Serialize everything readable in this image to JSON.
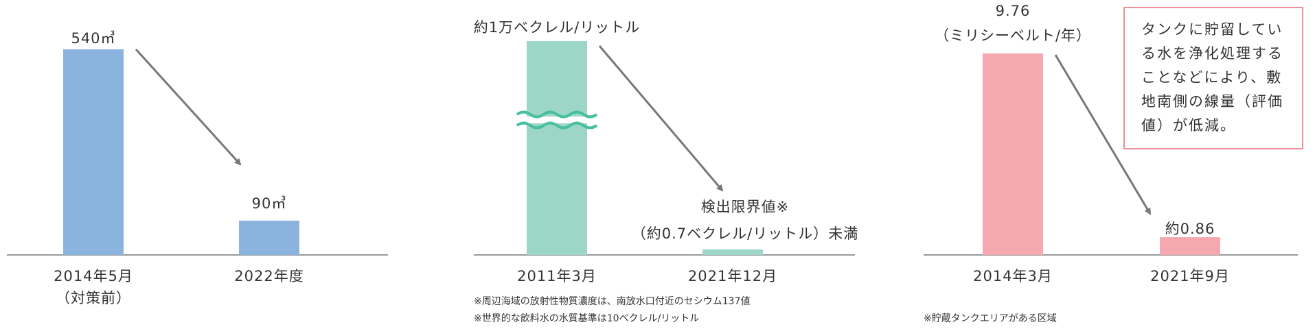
{
  "chart_data": [
    {
      "type": "bar",
      "categories": [
        "2014年5月\n（対策前）",
        "2022年度"
      ],
      "values": [
        540,
        90
      ],
      "value_labels": [
        "540㎥",
        "90㎥"
      ],
      "ylim": [
        0,
        600
      ],
      "color": "#8ab4de",
      "grid": false,
      "trend_arrow": true
    },
    {
      "type": "bar",
      "broken_axis": true,
      "categories": [
        "2011年3月",
        "2021年12月"
      ],
      "values": [
        10000,
        0.7
      ],
      "value_labels": [
        "約1万ベクレル/リットル",
        "検出限界値※\n（約0.7ベクレル/リットル）未満"
      ],
      "color": "#9dd6c6",
      "break_color": "#47bfa0",
      "grid": false,
      "trend_arrow": true,
      "notes": [
        "※周辺海域の放射性物質濃度は、南放水口付近のセシウム137値",
        "※世界的な飲料水の水質基準は10ベクレル/リットル"
      ]
    },
    {
      "type": "bar",
      "categories": [
        "2014年3月",
        "2021年9月"
      ],
      "values": [
        9.76,
        0.86
      ],
      "value_labels": [
        "9.76\n（ミリシーベルト/年）",
        "約0.86"
      ],
      "ylim": [
        0,
        10.6
      ],
      "color": "#f5a8b0",
      "grid": false,
      "trend_arrow": true,
      "notes": [
        "※貯蔵タンクエリアがある区域"
      ],
      "annotation": "タンクに貯留している水を浄化処理することなどにより、敷地南側の線量（評価値）が低減。",
      "annotation_border": "#ee8d95"
    }
  ]
}
